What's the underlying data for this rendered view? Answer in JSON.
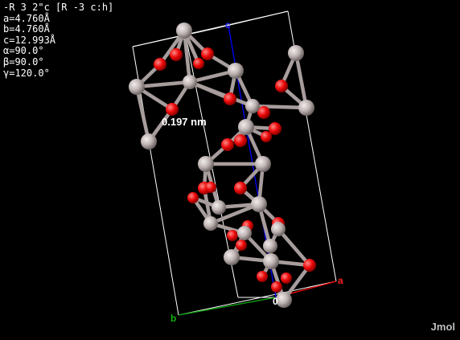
{
  "info_panel": {
    "lines": [
      "-R 3 2\"c [R -3 c:h]",
      "a=4.760Å",
      "b=4.760Å",
      "c=12.993Å",
      "α=90.0°",
      "β=90.0°",
      "γ=120.0°"
    ]
  },
  "measurement": {
    "label": "0.197 nm"
  },
  "axes": {
    "a": "a",
    "b": "b",
    "c": "c",
    "origin": "0"
  },
  "brand": "Jmol",
  "colors": {
    "background": "#000000",
    "cell": "#ffffff",
    "metal_atom": "#bfb4b4",
    "oxygen_atom": "#ff0d0d",
    "axis_a": "#ff0000",
    "axis_b": "#00a000",
    "axis_c": "#0000ff"
  }
}
